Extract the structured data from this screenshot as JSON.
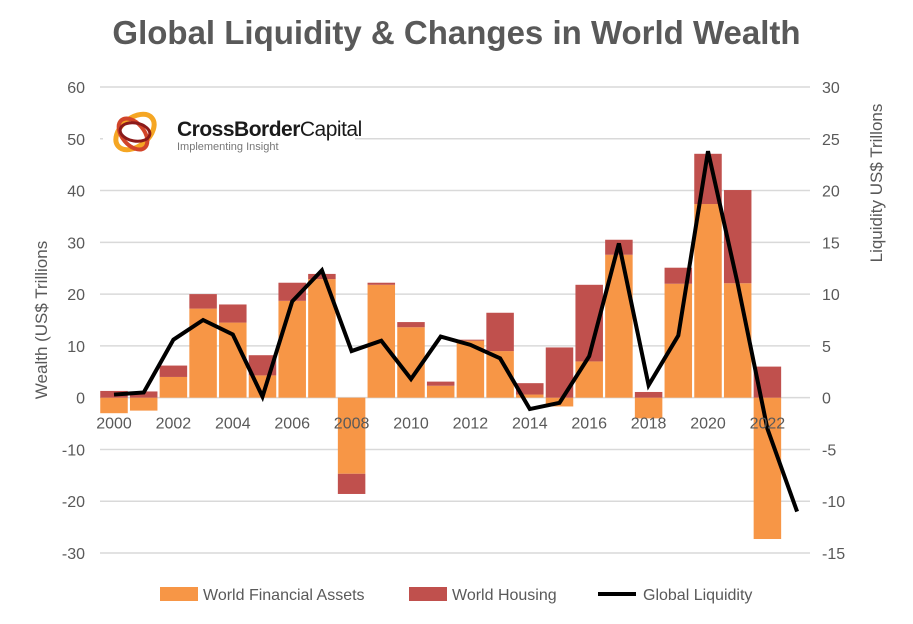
{
  "chart_data": {
    "type": "bar",
    "title": "Global Liquidity & Changes in World Wealth",
    "ylabel": "Wealth (US$ Trillions",
    "y2label": "Liquidity  US$ Trillons",
    "ylim": [
      -30,
      60
    ],
    "y2lim": [
      -15,
      30
    ],
    "yticks": [
      -30,
      -20,
      -10,
      0,
      10,
      20,
      30,
      40,
      50,
      60
    ],
    "y2ticks": [
      -15,
      -10,
      -5,
      0,
      5,
      10,
      15,
      20,
      25,
      30
    ],
    "xticks": [
      "2000",
      "2002",
      "2004",
      "2006",
      "2008",
      "2010",
      "2012",
      "2014",
      "2016",
      "2018",
      "2020",
      "2022"
    ],
    "grid": true,
    "legend_position": "bottom",
    "categories": [
      2000,
      2001,
      2002,
      2003,
      2004,
      2005,
      2006,
      2007,
      2008,
      2009,
      2010,
      2011,
      2012,
      2013,
      2014,
      2015,
      2016,
      2017,
      2018,
      2019,
      2020,
      2021,
      2022
    ],
    "series": [
      {
        "name": "World Financial Assets",
        "type": "stacked-bar",
        "axis": "left",
        "color": "#F79646",
        "values": [
          -3,
          -2.5,
          4,
          17.2,
          14.5,
          4.3,
          18.7,
          22.9,
          -14.7,
          21.8,
          13.6,
          2.3,
          11,
          9,
          0.6,
          -1.7,
          7,
          27.6,
          -4,
          22,
          37.4,
          22.1,
          -27.3
        ]
      },
      {
        "name": "World Housing",
        "type": "stacked-bar",
        "axis": "left",
        "color": "#C0504D",
        "values": [
          1.3,
          1.2,
          2.2,
          2.8,
          3.5,
          3.9,
          3.5,
          1,
          -3.9,
          0.4,
          1,
          0.8,
          0.2,
          7.4,
          2.2,
          9.7,
          14.8,
          2.9,
          1.1,
          3.1,
          9.7,
          18,
          6
        ]
      },
      {
        "name": "Global Liquidity",
        "type": "line",
        "axis": "right",
        "color": "#000000",
        "x": [
          2000,
          2001,
          2002,
          2003,
          2004,
          2005,
          2006,
          2007,
          2008,
          2009,
          2010,
          2011,
          2012,
          2013,
          2014,
          2015,
          2016,
          2017,
          2018,
          2019,
          2020,
          2021,
          2022,
          2023
        ],
        "values": [
          0.3,
          0.5,
          5.6,
          7.5,
          6.1,
          0.1,
          9.3,
          12.3,
          4.5,
          5.5,
          1.8,
          5.9,
          5.1,
          3.8,
          -1.1,
          -0.5,
          4,
          14.9,
          1.2,
          6,
          23.8,
          11,
          -3,
          -11
        ]
      }
    ]
  },
  "logo": {
    "brand_bold": "CrossBorder",
    "brand_light": "Capital",
    "tagline": "Implementing Insight"
  }
}
